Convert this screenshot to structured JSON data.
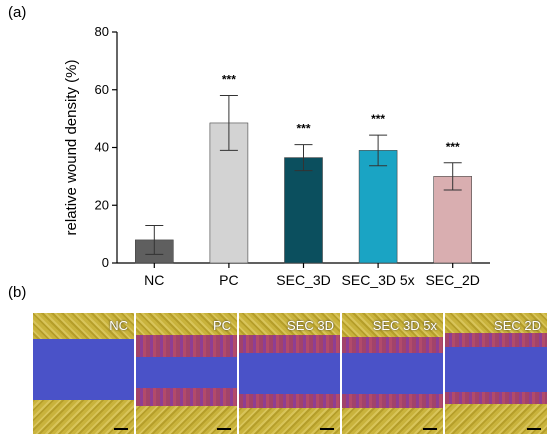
{
  "panel_a_label": "(a)",
  "panel_b_label": "(b)",
  "chart_data": {
    "type": "bar",
    "categories": [
      "NC",
      "PC",
      "SEC_3D",
      "SEC_3D 5x",
      "SEC_2D"
    ],
    "values": [
      8,
      48.5,
      36.5,
      39,
      30
    ],
    "errors": [
      5,
      9.5,
      4.5,
      5.3,
      4.7
    ],
    "significance": [
      "",
      "***",
      "***",
      "***",
      "***"
    ],
    "colors": [
      "#5f5f5f",
      "#d3d3d3",
      "#0b4f5e",
      "#1aa4c4",
      "#d9aeb0"
    ],
    "ylabel": "relative wound density (%)",
    "xlabel": "",
    "ylim": [
      0,
      80
    ],
    "yticks": [
      "0",
      "20",
      "40",
      "60",
      "80"
    ],
    "grid": false
  },
  "images": [
    {
      "label": "NC"
    },
    {
      "label": "PC"
    },
    {
      "label": "SEC 3D"
    },
    {
      "label": "SEC 3D 5x"
    },
    {
      "label": "SEC 2D"
    }
  ]
}
